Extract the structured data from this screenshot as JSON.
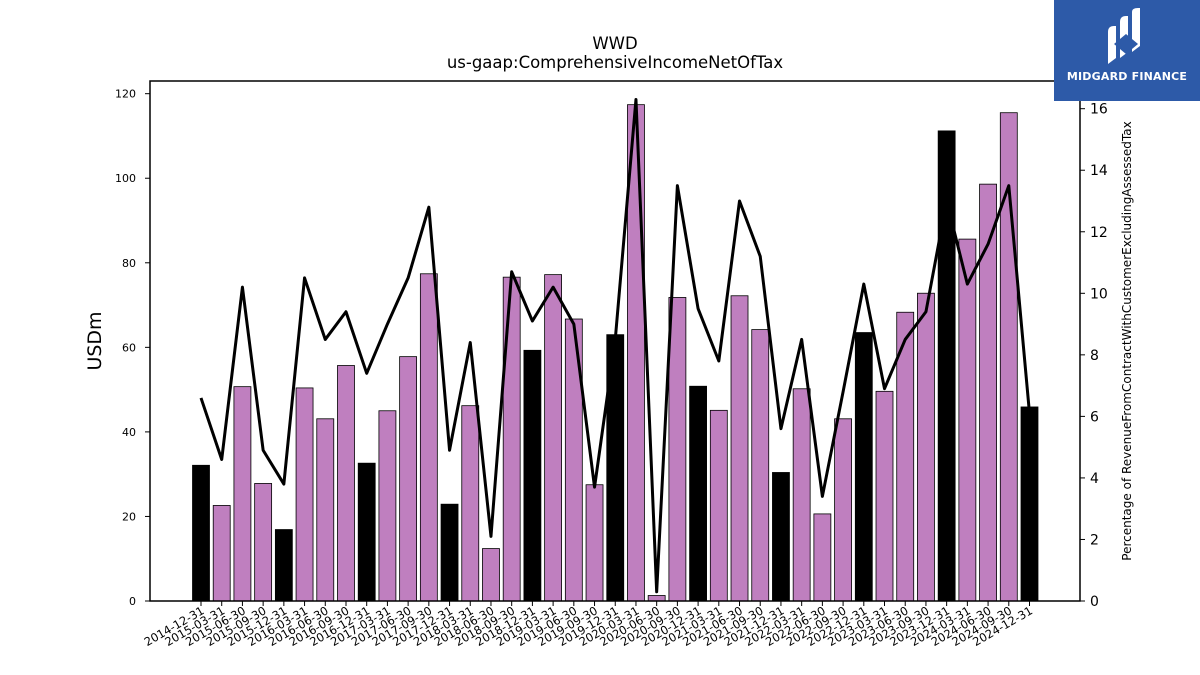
{
  "chart_data": {
    "type": "bar",
    "title": "WWD",
    "subtitle": "us-gaap:ComprehensiveIncomeNetOfTax",
    "ylabel": "USDm",
    "y2label": "Percentage of RevenueFromContractWithCustomerExcludingAssessedTax",
    "ylim": [
      0,
      123
    ],
    "y2lim": [
      0,
      16.9
    ],
    "yticks": [
      0,
      20,
      40,
      60,
      80,
      100,
      120
    ],
    "y2ticks": [
      0,
      2,
      4,
      6,
      8,
      10,
      12,
      14,
      16
    ],
    "grid": false,
    "categories": [
      "2014-12-31",
      "2015-03-31",
      "2015-06-30",
      "2015-09-30",
      "2015-12-31",
      "2016-03-31",
      "2016-06-30",
      "2016-09-30",
      "2016-12-31",
      "2017-03-31",
      "2017-06-30",
      "2017-09-30",
      "2017-12-31",
      "2018-03-31",
      "2018-06-30",
      "2018-09-30",
      "2018-12-31",
      "2019-03-31",
      "2019-06-30",
      "2019-09-30",
      "2019-12-31",
      "2020-03-31",
      "2020-06-30",
      "2020-09-30",
      "2020-12-31",
      "2021-03-31",
      "2021-06-30",
      "2021-09-30",
      "2021-12-31",
      "2022-03-31",
      "2022-06-30",
      "2022-09-30",
      "2022-12-31",
      "2023-03-31",
      "2023-06-30",
      "2023-09-30",
      "2023-12-31",
      "2024-03-31",
      "2024-06-30",
      "2024-09-30",
      "2024-12-31"
    ],
    "series": [
      {
        "type": "bar",
        "values": [
          32.1,
          22.6,
          50.7,
          27.8,
          16.9,
          50.4,
          43.1,
          55.7,
          32.6,
          45.0,
          57.8,
          77.4,
          22.9,
          46.2,
          12.4,
          76.6,
          59.3,
          77.2,
          66.7,
          27.5,
          63.0,
          117.4,
          1.3,
          71.8,
          50.8,
          45.1,
          72.2,
          64.2,
          30.4,
          50.2,
          20.6,
          43.1,
          63.5,
          49.6,
          68.3,
          72.8,
          111.2,
          85.6,
          98.6,
          115.5,
          45.9
        ],
        "colors": [
          "#000000",
          "#bf7fbf",
          "#bf7fbf",
          "#bf7fbf",
          "#000000",
          "#bf7fbf",
          "#bf7fbf",
          "#bf7fbf",
          "#000000",
          "#bf7fbf",
          "#bf7fbf",
          "#bf7fbf",
          "#000000",
          "#bf7fbf",
          "#bf7fbf",
          "#bf7fbf",
          "#000000",
          "#bf7fbf",
          "#bf7fbf",
          "#bf7fbf",
          "#000000",
          "#bf7fbf",
          "#bf7fbf",
          "#bf7fbf",
          "#000000",
          "#bf7fbf",
          "#bf7fbf",
          "#bf7fbf",
          "#000000",
          "#bf7fbf",
          "#bf7fbf",
          "#bf7fbf",
          "#000000",
          "#bf7fbf",
          "#bf7fbf",
          "#bf7fbf",
          "#000000",
          "#bf7fbf",
          "#bf7fbf",
          "#bf7fbf",
          "#000000"
        ]
      },
      {
        "type": "line",
        "axis": "right",
        "values": [
          6.6,
          4.6,
          10.2,
          4.9,
          3.8,
          10.5,
          8.5,
          9.4,
          7.4,
          9.0,
          10.5,
          12.8,
          4.9,
          8.4,
          2.1,
          10.7,
          9.1,
          10.2,
          9.0,
          3.7,
          8.5,
          16.3,
          0.3,
          13.5,
          9.5,
          7.8,
          13.0,
          11.2,
          5.6,
          8.5,
          3.4,
          6.8,
          10.3,
          6.9,
          8.5,
          9.4,
          13.0,
          10.3,
          11.6,
          13.5,
          6.1
        ],
        "color": "#000000"
      }
    ]
  },
  "logo": {
    "text": "MIDGARD FINANCE",
    "bg": "#2d5aa8",
    "icon": "midgard-logo-icon"
  }
}
